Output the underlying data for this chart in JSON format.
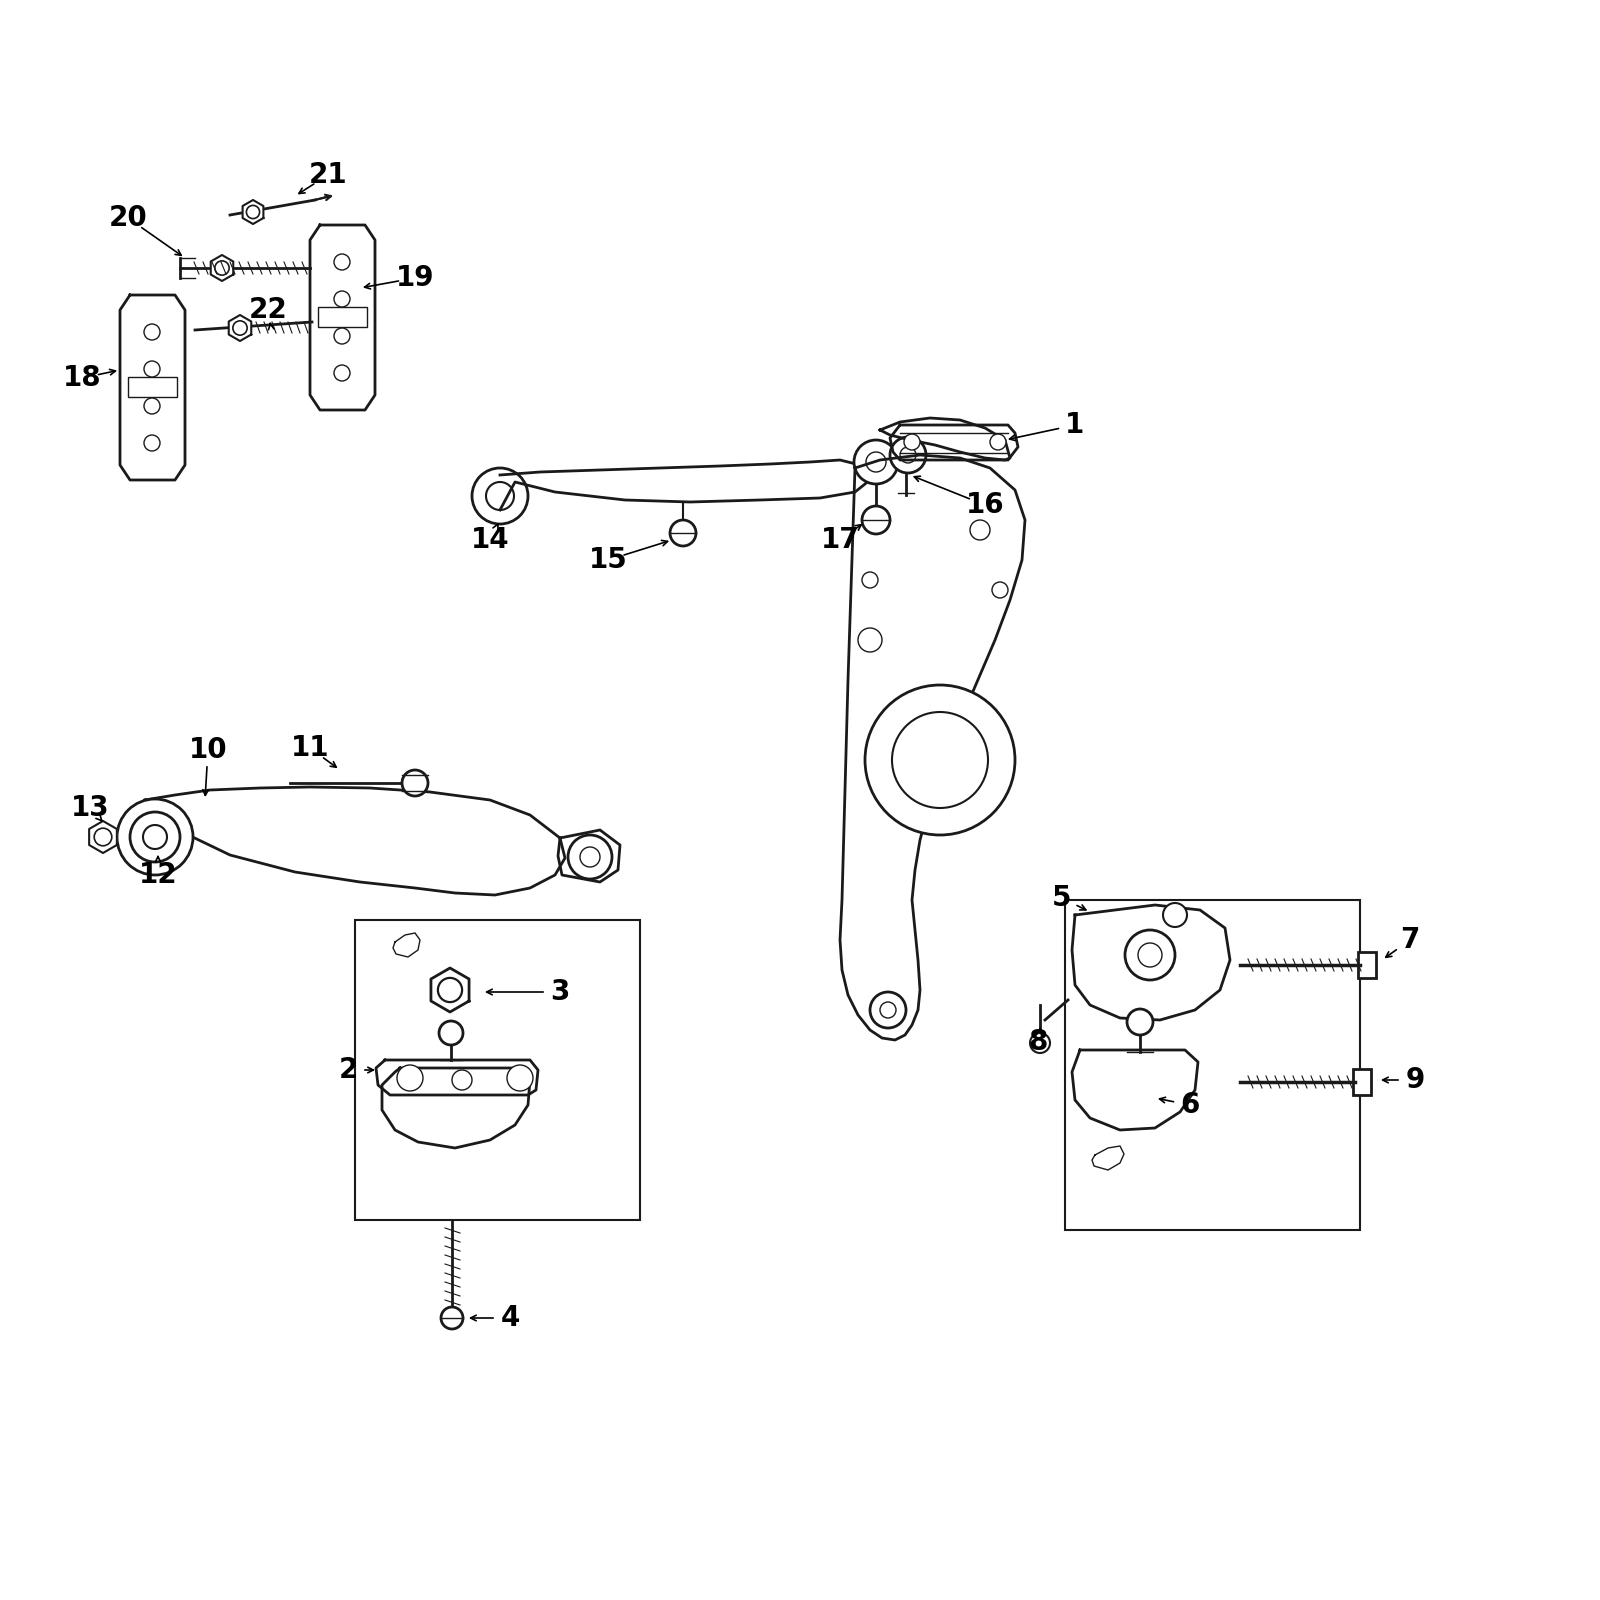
{
  "bg_color": "#ffffff",
  "line_color": "#1a1a1a",
  "label_color": "#000000",
  "label_fontsize": 20,
  "fig_width": 16,
  "fig_height": 16
}
